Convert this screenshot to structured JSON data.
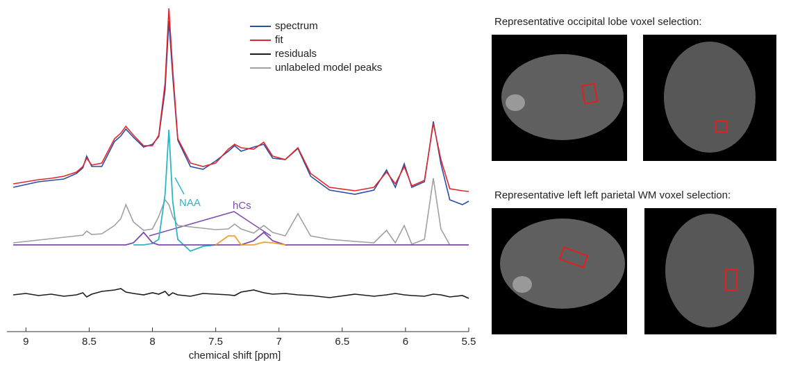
{
  "chart_data": {
    "type": "line",
    "xlabel": "chemical shift [ppm]",
    "xlim": [
      9.15,
      5.5
    ],
    "xticks": [
      9,
      8.5,
      8,
      7.5,
      7,
      6.5,
      6,
      5.5
    ],
    "ylim": [
      0,
      470
    ],
    "legend": "upper center",
    "x": [
      9.1,
      9.0,
      8.9,
      8.8,
      8.7,
      8.6,
      8.55,
      8.52,
      8.48,
      8.4,
      8.3,
      8.25,
      8.21,
      8.15,
      8.07,
      8.0,
      7.95,
      7.9,
      7.87,
      7.84,
      7.8,
      7.7,
      7.6,
      7.5,
      7.4,
      7.35,
      7.3,
      7.2,
      7.12,
      7.05,
      6.95,
      6.85,
      6.75,
      6.6,
      6.4,
      6.25,
      6.15,
      6.08,
      6.01,
      5.95,
      5.85,
      5.78,
      5.72,
      5.65,
      5.55,
      5.5
    ],
    "series": [
      {
        "name": "spectrum",
        "color": "#2b4ea0",
        "values": [
          210,
          214,
          218,
          220,
          222,
          230,
          238,
          255,
          240,
          240,
          276,
          284,
          294,
          282,
          268,
          272,
          283,
          350,
          450,
          370,
          278,
          240,
          236,
          248,
          262,
          270,
          262,
          268,
          272,
          252,
          250,
          266,
          226,
          206,
          200,
          206,
          235,
          210,
          244,
          210,
          218,
          305,
          244,
          192,
          185,
          190
        ]
      },
      {
        "name": "fit",
        "color": "#e0262b",
        "values": [
          215,
          218,
          221,
          223,
          226,
          232,
          240,
          252,
          242,
          245,
          280,
          288,
          298,
          285,
          270,
          270,
          285,
          360,
          468,
          380,
          280,
          245,
          240,
          245,
          265,
          272,
          267,
          265,
          275,
          255,
          250,
          267,
          230,
          210,
          205,
          210,
          232,
          215,
          240,
          212,
          220,
          302,
          250,
          208,
          205,
          204
        ]
      },
      {
        "name": "residuals",
        "color": "#1a1a1a",
        "values": [
          55,
          57,
          54,
          56,
          53,
          55,
          58,
          52,
          56,
          60,
          62,
          64,
          59,
          57,
          55,
          58,
          56,
          60,
          54,
          58,
          55,
          53,
          57,
          56,
          55,
          54,
          59,
          62,
          58,
          56,
          57,
          55,
          54,
          51,
          56,
          53,
          55,
          57,
          55,
          54,
          53,
          56,
          55,
          52,
          54,
          50
        ]
      },
      {
        "name": "unlabeled model peaks",
        "color": "#a0a0a0",
        "values": [
          130,
          132,
          134,
          136,
          138,
          140,
          141,
          147,
          142,
          143,
          155,
          165,
          185,
          160,
          148,
          150,
          168,
          192,
          185,
          168,
          155,
          153,
          151,
          149,
          150,
          157,
          150,
          144,
          155,
          145,
          140,
          172,
          140,
          135,
          132,
          130,
          148,
          130,
          155,
          128,
          135,
          223,
          150,
          127,
          127,
          127
        ]
      }
    ],
    "components": [
      {
        "label": "NAA",
        "color": "#2bb5c5",
        "values": [
          null,
          null,
          null,
          null,
          null,
          null,
          null,
          null,
          null,
          null,
          null,
          null,
          null,
          127,
          127,
          129,
          135,
          200,
          293,
          190,
          135,
          118,
          125,
          127,
          null,
          null,
          null,
          null,
          null,
          null,
          null,
          null,
          null,
          null,
          null,
          null,
          null,
          null,
          null,
          null,
          null,
          null,
          null,
          null,
          null,
          null
        ]
      },
      {
        "label": "hCs",
        "color": "#7b4bb0",
        "values": [
          127,
          127,
          127,
          127,
          127,
          127,
          127,
          127,
          127,
          127,
          127,
          127,
          127,
          130,
          145,
          130,
          127,
          127,
          127,
          127,
          127,
          127,
          127,
          127,
          127,
          127,
          127,
          133,
          145,
          133,
          127,
          127,
          127,
          127,
          127,
          127,
          127,
          127,
          127,
          127,
          127,
          127,
          127,
          127,
          127,
          127
        ]
      },
      {
        "color": "#f0a030",
        "values": [
          null,
          null,
          null,
          null,
          null,
          null,
          null,
          null,
          null,
          null,
          null,
          null,
          null,
          null,
          null,
          null,
          null,
          null,
          null,
          null,
          null,
          null,
          null,
          127,
          140,
          140,
          127,
          127,
          131,
          130,
          127,
          null,
          null,
          null,
          null,
          null,
          null,
          null,
          null,
          null,
          null,
          null,
          null,
          null,
          null,
          null
        ]
      }
    ]
  },
  "panels": [
    {
      "title": "Representative occipital lobe voxel selection:"
    },
    {
      "title": "Representative left left parietal WM voxel selection:"
    }
  ]
}
